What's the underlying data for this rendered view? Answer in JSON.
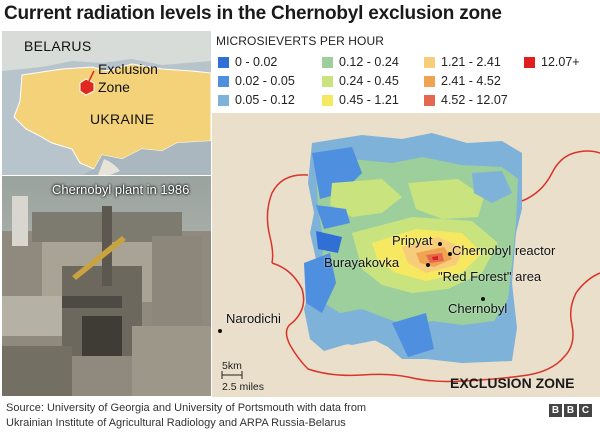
{
  "title": "Current radiation levels in the Chernobyl exclusion zone",
  "inset_map": {
    "labels": {
      "belarus": "BELARUS",
      "zone_line1": "Exclusion",
      "zone_line2": "Zone",
      "ukraine": "UKRAINE"
    },
    "colors": {
      "country_highlight": "#f3d27a",
      "zone": "#e0281f",
      "background": "#c8d3da"
    }
  },
  "photo": {
    "caption": "Chernobyl plant in 1986"
  },
  "legend": {
    "title": "MICROSIEVERTS PER HOUR",
    "items": [
      {
        "label": "0 - 0.02",
        "color": "#2f6fd6"
      },
      {
        "label": "0.02 - 0.05",
        "color": "#4e8fe0"
      },
      {
        "label": "0.05 - 0.12",
        "color": "#7fb2d8"
      },
      {
        "label": "0.12 - 0.24",
        "color": "#9ccf9c"
      },
      {
        "label": "0.24 - 0.45",
        "color": "#c9e37f"
      },
      {
        "label": "0.45 - 1.21",
        "color": "#f7e862"
      },
      {
        "label": "1.21 - 2.41",
        "color": "#f7cd7b"
      },
      {
        "label": "2.41 - 4.52",
        "color": "#f0a452"
      },
      {
        "label": "4.52 - 12.07",
        "color": "#e4684f"
      },
      {
        "label": "12.07+",
        "color": "#e01e1e"
      }
    ]
  },
  "map": {
    "places": {
      "pripyat": "Pripyat",
      "reactor": "Chernobyl reactor",
      "burayakovka": "Burayakovka",
      "red_forest": "\"Red Forest\" area",
      "chernobyl": "Chernobyl",
      "narodichi": "Narodichi"
    },
    "zone_label": "EXCLUSION ZONE",
    "scale": {
      "km": "5km",
      "miles": "2.5 miles"
    },
    "colors": {
      "border": "#d9342b",
      "background": "#eadfcb"
    }
  },
  "footer": {
    "line1": "Source: University of Georgia and University of Portsmouth with data from",
    "line2": "Ukrainian Institute of Agricultural Radiology and ARPA Russia-Belarus"
  },
  "brand": {
    "letters": [
      "B",
      "B",
      "C"
    ]
  }
}
